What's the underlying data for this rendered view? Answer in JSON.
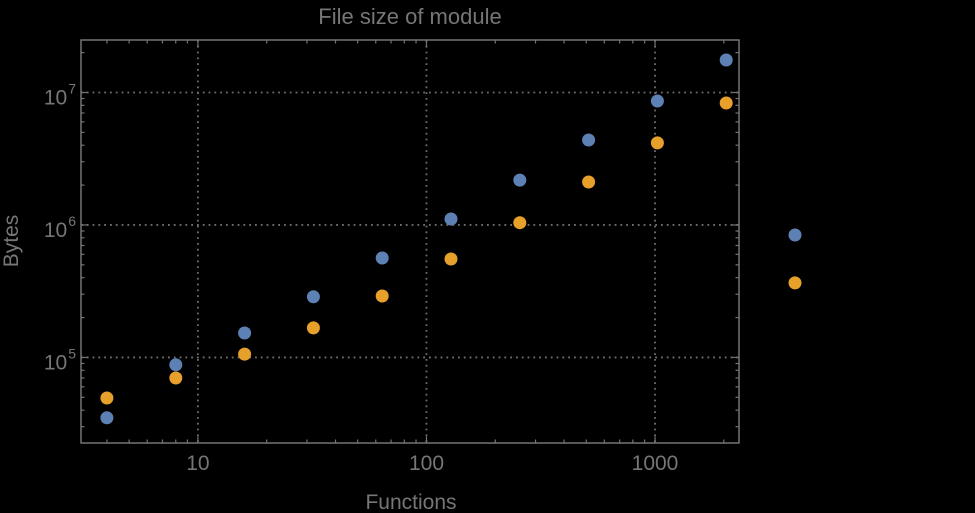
{
  "title": "File size of module",
  "colors": {
    "background": "#000000",
    "frame": "#747474",
    "grid": "#6e6e6e",
    "text": "#767676",
    "series_blue": "#5e81b5",
    "series_orange": "#e7a02a"
  },
  "chart_data": {
    "type": "scatter",
    "title": "File size of module",
    "xlabel": "Functions",
    "ylabel": "Bytes",
    "xscale": "log",
    "yscale": "log",
    "xlim": [
      3.08,
      2330
    ],
    "ylim": [
      22600,
      24900000
    ],
    "grid": true,
    "legend": "none",
    "marker_radius": 6.5,
    "clip_points": false,
    "x": [
      4,
      8,
      16,
      32,
      64,
      128,
      256,
      512,
      1024,
      2048,
      4096
    ],
    "series": [
      {
        "name": "series-blue",
        "color": "#5e81b5",
        "values": [
          35000,
          88000,
          153000,
          287000,
          563000,
          1110000,
          2180000,
          4380000,
          8630000,
          17600000,
          840000
        ]
      },
      {
        "name": "series-orange",
        "color": "#e7a02a",
        "values": [
          49400,
          70000,
          106000,
          167000,
          291000,
          553000,
          1040000,
          2110000,
          4160000,
          8330000,
          365000
        ]
      }
    ],
    "x_ticks": [
      {
        "value": 10,
        "label": "10"
      },
      {
        "value": 100,
        "label": "100"
      },
      {
        "value": 1000,
        "label": "1000"
      }
    ],
    "y_ticks": [
      {
        "value": 100000,
        "base": "10",
        "exp": "5"
      },
      {
        "value": 1000000,
        "base": "10",
        "exp": "6"
      },
      {
        "value": 10000000,
        "base": "10",
        "exp": "7"
      }
    ]
  }
}
